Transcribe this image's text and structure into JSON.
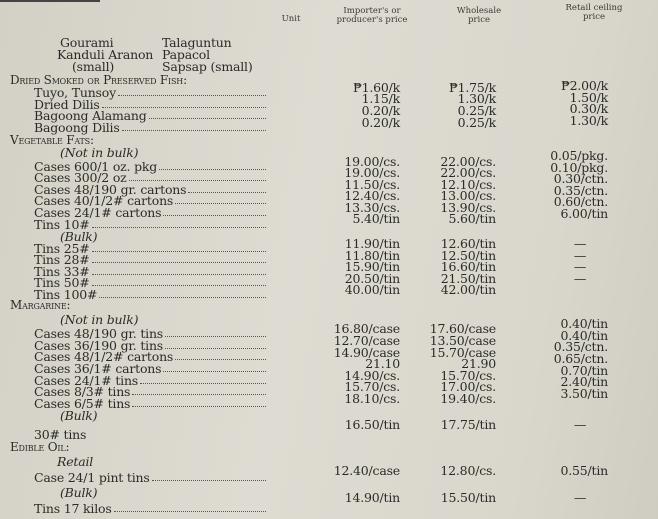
{
  "header": {
    "unit": "Unit",
    "importer": "Importer's or producer's price",
    "wholesale": "Wholesale price",
    "retail": "Retail ceiling price"
  },
  "fish_names": [
    "Gourami",
    "Talaguntun",
    "Kanduli Aranon",
    "Papacol",
    "(small)",
    "Sapsap (small)"
  ],
  "rows": [
    {
      "type": "section",
      "label": "Dried Smoked or Preserved Fish:"
    },
    {
      "type": "item",
      "label": "Tuyo, Tunsoy",
      "importer": "₱1.60/k",
      "wholesale": "₱1.75/k",
      "retail": "₱2.00/k"
    },
    {
      "type": "item",
      "label": "Dried Dilis",
      "importer": "1.15/k",
      "wholesale": "1.30/k",
      "retail": "1.50/k"
    },
    {
      "type": "item",
      "label": "Bagoong Alamang",
      "importer": "0.20/k",
      "wholesale": "0.25/k",
      "retail": "0.30/k"
    },
    {
      "type": "item",
      "label": "Bagoong Dilis",
      "importer": "0.20/k",
      "wholesale": "0.25/k",
      "retail": "1.30/k"
    },
    {
      "type": "section",
      "label": "Vegetable Fats:"
    },
    {
      "type": "sub",
      "label": "(Not in bulk)"
    },
    {
      "type": "item",
      "label": "Cases 600/1 oz. pkg",
      "importer": "19.00/cs.",
      "wholesale": "22.00/cs.",
      "retail": "0.05/pkg."
    },
    {
      "type": "item",
      "label": "Cases 300/2 oz",
      "importer": "19.00/cs.",
      "wholesale": "22.00/cs.",
      "retail": "0.10/pkg."
    },
    {
      "type": "item",
      "label": "Cases 48/190 gr. cartons",
      "importer": "11.50/cs.",
      "wholesale": "12.10/cs.",
      "retail": "0.30/ctn."
    },
    {
      "type": "item",
      "label": "Cases 40/1/2# cartons",
      "importer": "12.40/cs.",
      "wholesale": "13.00/cs.",
      "retail": "0.35/ctn."
    },
    {
      "type": "item",
      "label": "Cases 24/1# cartons",
      "importer": "13.30/cs.",
      "wholesale": "13.90/cs.",
      "retail": "0.60/ctn."
    },
    {
      "type": "item",
      "label": "Tins 10#",
      "importer": "5.40/tin",
      "wholesale": "5.60/tin",
      "retail": "6.00/tin"
    },
    {
      "type": "sub",
      "label": "(Bulk)"
    },
    {
      "type": "item",
      "label": "Tins 25#",
      "importer": "11.90/tin",
      "wholesale": "12.60/tin",
      "retail": "—"
    },
    {
      "type": "item",
      "label": "Tins 28#",
      "importer": "11.80/tin",
      "wholesale": "12.50/tin",
      "retail": "—"
    },
    {
      "type": "item",
      "label": "Tins 33#",
      "importer": "15.90/tin",
      "wholesale": "16.60/tin",
      "retail": "—"
    },
    {
      "type": "item",
      "label": "Tins 50#",
      "importer": "20.50/tin",
      "wholesale": "21.50/tin",
      "retail": "—"
    },
    {
      "type": "item",
      "label": "Tins 100#",
      "importer": "40.00/tin",
      "wholesale": "42.00/tin",
      "retail": ""
    },
    {
      "type": "section",
      "label": "Margarine:"
    },
    {
      "type": "sub",
      "label": "(Not in bulk)"
    },
    {
      "type": "item",
      "label": "Cases 48/190 gr. tins",
      "importer": "16.80/case",
      "wholesale": "17.60/case",
      "retail": "0.40/tin"
    },
    {
      "type": "item",
      "label": "Cases 36/190 gr. tins",
      "importer": "12.70/case",
      "wholesale": "13.50/case",
      "retail": "0.40/tin"
    },
    {
      "type": "item",
      "label": "Cases 48/1/2# cartons",
      "importer": "14.90/case",
      "wholesale": "15.70/case",
      "retail": "0.35/ctn."
    },
    {
      "type": "item",
      "label": "Cases 36/1# cartons",
      "importer": "21.10",
      "wholesale": "21.90",
      "retail": "0.65/ctn."
    },
    {
      "type": "item",
      "label": "Cases 24/1# tins",
      "importer": "14.90/cs.",
      "wholesale": "15.70/cs.",
      "retail": "0.70/tin"
    },
    {
      "type": "item",
      "label": "Cases 8/3# tins",
      "importer": "15.70/cs.",
      "wholesale": "17.00/cs.",
      "retail": "2.40/tin"
    },
    {
      "type": "item",
      "label": "Cases 6/5# tins",
      "importer": "18.10/cs.",
      "wholesale": "19.40/cs.",
      "retail": "3.50/tin"
    },
    {
      "type": "sub",
      "label": "(Bulk)"
    },
    {
      "type": "bare",
      "label": "30# tins",
      "importer": "16.50/tin",
      "wholesale": "17.75/tin",
      "retail": "—"
    },
    {
      "type": "section",
      "label": "Edible Oil:"
    },
    {
      "type": "sub",
      "label": "Retail"
    },
    {
      "type": "item",
      "label": "Case 24/1 pint tins",
      "importer": "12.40/case",
      "wholesale": "12.80/cs.",
      "retail": "0.55/tin"
    },
    {
      "type": "sub",
      "label": "(Bulk)"
    },
    {
      "type": "item",
      "label": "Tins 17 kilos",
      "importer": "14.90/tin",
      "wholesale": "15.50/tin",
      "retail": "—"
    }
  ]
}
